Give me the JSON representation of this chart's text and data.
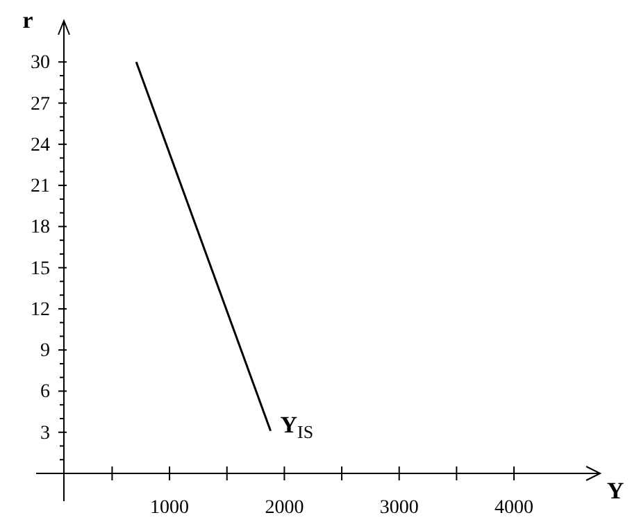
{
  "chart_data": {
    "type": "line",
    "xlabel": "Y",
    "ylabel": "r",
    "x": [
      710,
      1880
    ],
    "series": [
      {
        "color": "#000000",
        "values": [
          30,
          3.1
        ]
      }
    ],
    "xlim": [
      80,
      4750
    ],
    "ylim": [
      0,
      33
    ],
    "xticks": [
      {
        "value": 500,
        "label": null
      },
      1000,
      {
        "value": 1500,
        "label": null
      },
      2000,
      {
        "value": 2500,
        "label": null
      },
      3000,
      {
        "value": 3500,
        "label": null
      },
      4000
    ],
    "yticks": [
      {
        "value": 1,
        "label": null
      },
      {
        "value": 2,
        "label": null
      },
      3,
      {
        "value": 4,
        "label": null
      },
      {
        "value": 5,
        "label": null
      },
      6,
      {
        "value": 7,
        "label": null
      },
      {
        "value": 8,
        "label": null
      },
      9,
      {
        "value": 10,
        "label": null
      },
      {
        "value": 11,
        "label": null
      },
      12,
      {
        "value": 13,
        "label": null
      },
      {
        "value": 14,
        "label": null
      },
      15,
      {
        "value": 16,
        "label": null
      },
      {
        "value": 17,
        "label": null
      },
      18,
      {
        "value": 19,
        "label": null
      },
      {
        "value": 20,
        "label": null
      },
      21,
      {
        "value": 22,
        "label": null
      },
      {
        "value": 23,
        "label": null
      },
      24,
      {
        "value": 25,
        "label": null
      },
      {
        "value": 26,
        "label": null
      },
      27,
      {
        "value": 28,
        "label": null
      },
      {
        "value": 29,
        "label": null
      },
      30
    ],
    "grid": false,
    "marker": "none",
    "line_style": "solid",
    "annotations": [
      {
        "text": "Y$_{IS}$",
        "x": 1880,
        "y": 3
      }
    ]
  }
}
